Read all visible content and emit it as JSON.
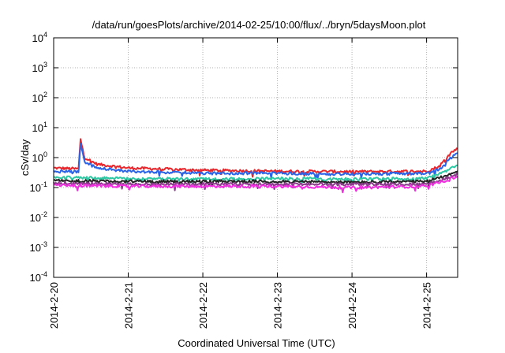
{
  "chart_data": {
    "type": "line",
    "title": "/data/run/goesPlots/archive/2014-02-25/10:00/flux/../bryn/5daysMoon.plot",
    "xlabel": "Coordinated Universal Time (UTC)",
    "ylabel": "cSv/day",
    "y_scale": "log",
    "ylim": [
      0.0001,
      10000
    ],
    "y_ticks": [
      {
        "base": "10",
        "exp": "-4",
        "value": 0.0001
      },
      {
        "base": "10",
        "exp": "-3",
        "value": 0.001
      },
      {
        "base": "10",
        "exp": "-2",
        "value": 0.01
      },
      {
        "base": "10",
        "exp": "-1",
        "value": 0.1
      },
      {
        "base": "10",
        "exp": "0",
        "value": 1
      },
      {
        "base": "10",
        "exp": "1",
        "value": 10
      },
      {
        "base": "10",
        "exp": "2",
        "value": 100
      },
      {
        "base": "10",
        "exp": "3",
        "value": 1000
      },
      {
        "base": "10",
        "exp": "4",
        "value": 10000
      }
    ],
    "xlim": [
      "2014-02-20",
      "2014-02-25T10:00"
    ],
    "x_ticks": [
      "2014-2-20",
      "2014-2-21",
      "2014-2-22",
      "2014-2-23",
      "2014-2-24",
      "2014-2-25"
    ],
    "grid": true,
    "series_style_note": "",
    "series": [
      {
        "color": "#e8262b",
        "x": [
          "2014-02-20T00:00",
          "2014-02-20T08:00",
          "2014-02-20T08:40",
          "2014-02-20T10:00",
          "2014-02-20T14:00",
          "2014-02-21T00:00",
          "2014-02-22T00:00",
          "2014-02-23T00:00",
          "2014-02-24T00:00",
          "2014-02-25T00:00",
          "2014-02-25T04:00",
          "2014-02-25T08:00",
          "2014-02-25T10:00"
        ],
        "values": [
          0.45,
          0.42,
          4.0,
          1.0,
          0.6,
          0.45,
          0.38,
          0.35,
          0.34,
          0.35,
          0.5,
          1.5,
          2.0
        ]
      },
      {
        "color": "#2a64e8",
        "x": [
          "2014-02-20T00:00",
          "2014-02-20T08:00",
          "2014-02-20T08:40",
          "2014-02-20T10:00",
          "2014-02-20T14:00",
          "2014-02-21T00:00",
          "2014-02-22T00:00",
          "2014-02-23T00:00",
          "2014-02-24T00:00",
          "2014-02-25T00:00",
          "2014-02-25T04:00",
          "2014-02-25T08:00",
          "2014-02-25T10:00"
        ],
        "values": [
          0.35,
          0.33,
          3.0,
          0.7,
          0.45,
          0.35,
          0.3,
          0.3,
          0.28,
          0.3,
          0.4,
          1.0,
          1.4
        ]
      },
      {
        "color": "#2ec9a4",
        "x": [
          "2014-02-20T00:00",
          "2014-02-21T00:00",
          "2014-02-22T00:00",
          "2014-02-23T00:00",
          "2014-02-24T00:00",
          "2014-02-25T00:00",
          "2014-02-25T06:00",
          "2014-02-25T10:00"
        ],
        "values": [
          0.22,
          0.2,
          0.19,
          0.2,
          0.19,
          0.2,
          0.35,
          0.55
        ]
      },
      {
        "color": "#232323",
        "x": [
          "2014-02-20T00:00",
          "2014-02-21T00:00",
          "2014-02-22T00:00",
          "2014-02-23T00:00",
          "2014-02-24T00:00",
          "2014-02-25T00:00",
          "2014-02-25T06:00",
          "2014-02-25T10:00"
        ],
        "values": [
          0.17,
          0.16,
          0.16,
          0.16,
          0.15,
          0.16,
          0.25,
          0.35
        ]
      },
      {
        "color": "#8a3b8a",
        "x": [
          "2014-02-20T00:00",
          "2014-02-21T00:00",
          "2014-02-22T00:00",
          "2014-02-23T00:00",
          "2014-02-24T00:00",
          "2014-02-25T00:00",
          "2014-02-25T06:00",
          "2014-02-25T10:00"
        ],
        "values": [
          0.14,
          0.13,
          0.13,
          0.13,
          0.13,
          0.13,
          0.2,
          0.28
        ]
      },
      {
        "color": "#f22ce0",
        "x": [
          "2014-02-20T00:00",
          "2014-02-21T00:00",
          "2014-02-22T00:00",
          "2014-02-23T00:00",
          "2014-02-24T00:00",
          "2014-02-25T00:00",
          "2014-02-25T06:00",
          "2014-02-25T10:00"
        ],
        "values": [
          0.12,
          0.11,
          0.11,
          0.11,
          0.1,
          0.11,
          0.17,
          0.24
        ]
      }
    ]
  }
}
